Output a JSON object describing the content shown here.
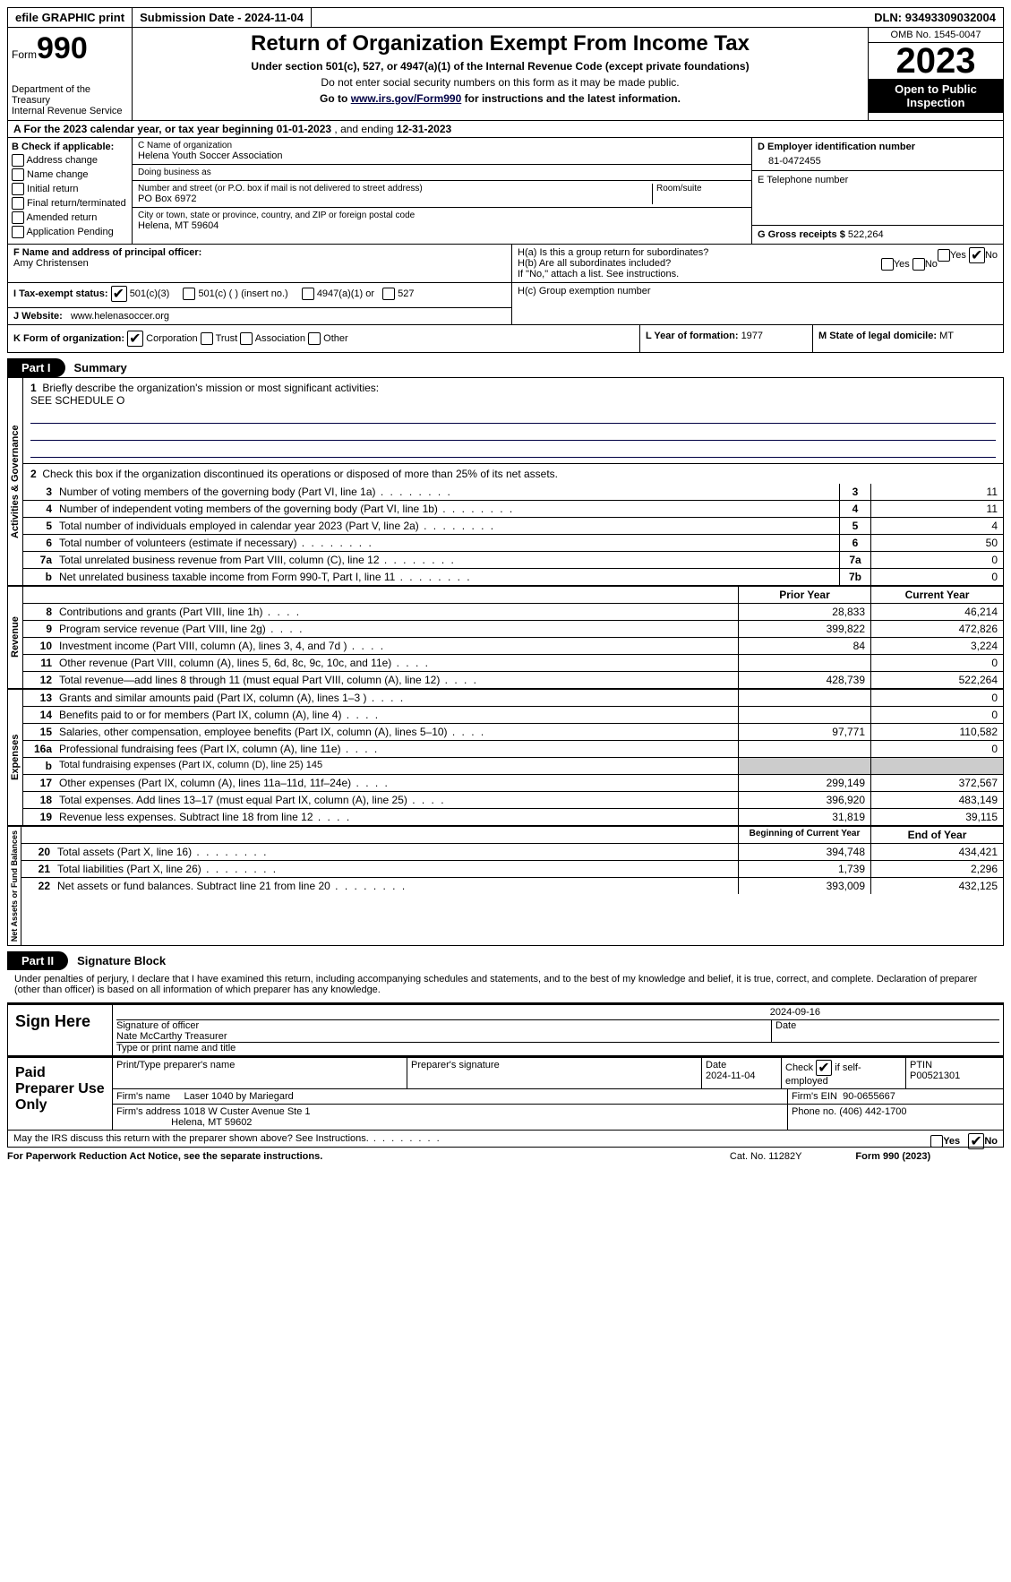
{
  "topbar": {
    "efile": "efile GRAPHIC print",
    "subdate_label": "Submission Date - ",
    "subdate": "2024-11-04",
    "dln_label": "DLN: ",
    "dln": "93493309032004"
  },
  "header": {
    "form_prefix": "Form",
    "form_num": "990",
    "dept": "Department of the Treasury",
    "irs": "Internal Revenue Service",
    "title": "Return of Organization Exempt From Income Tax",
    "sub1": "Under section 501(c), 527, or 4947(a)(1) of the Internal Revenue Code (except private foundations)",
    "sub2": "Do not enter social security numbers on this form as it may be made public.",
    "sub3_pre": "Go to ",
    "sub3_link": "www.irs.gov/Form990",
    "sub3_post": " for instructions and the latest information.",
    "omb": "OMB No. 1545-0047",
    "year": "2023",
    "inspect": "Open to Public Inspection"
  },
  "row_a": {
    "label_a": "A For the 2023 calendar year, or tax year beginning ",
    "begin": "01-01-2023",
    "mid": " , and ending ",
    "end": "12-31-2023"
  },
  "col_b": {
    "label": "B Check if applicable:",
    "items": [
      "Address change",
      "Name change",
      "Initial return",
      "Final return/terminated",
      "Amended return",
      "Application Pending"
    ]
  },
  "col_c": {
    "name_label": "C Name of organization",
    "name": "Helena Youth Soccer Association",
    "dba_label": "Doing business as",
    "addr_label": "Number and street (or P.O. box if mail is not delivered to street address)",
    "addr": "PO Box 6972",
    "room_label": "Room/suite",
    "city_label": "City or town, state or province, country, and ZIP or foreign postal code",
    "city": "Helena, MT  59604"
  },
  "col_d": {
    "label": "D Employer identification number",
    "val": "81-0472455"
  },
  "col_e": {
    "label": "E Telephone number"
  },
  "col_g": {
    "label": "G Gross receipts $ ",
    "val": "522,264"
  },
  "col_f": {
    "label": "F  Name and address of principal officer:",
    "name": "Amy Christensen"
  },
  "col_h": {
    "ha": "H(a)  Is this a group return for subordinates?",
    "hb": "H(b)  Are all subordinates included?",
    "hb_note": "If \"No,\" attach a list. See instructions.",
    "hc": "H(c)  Group exemption number",
    "yes": "Yes",
    "no": "No"
  },
  "tax_status": {
    "label_i": "I   Tax-exempt status:",
    "c3": "501(c)(3)",
    "c": "501(c) (  ) (insert no.)",
    "a1": "4947(a)(1) or",
    "s527": "527"
  },
  "website": {
    "label": "J   Website:",
    "val": "www.helenasoccer.org"
  },
  "row_k": {
    "label": "K Form of organization:",
    "corp": "Corporation",
    "trust": "Trust",
    "assoc": "Association",
    "other": "Other",
    "l_label": "L Year of formation: ",
    "l_val": "1977",
    "m_label": "M State of legal domicile: ",
    "m_val": "MT"
  },
  "part1": {
    "pill": "Part I",
    "title": "Summary"
  },
  "mission": {
    "num": "1",
    "label": "Briefly describe the organization's mission or most significant activities:",
    "text": "SEE SCHEDULE O"
  },
  "line2": {
    "num": "2",
    "text": "Check this box      if the organization discontinued its operations or disposed of more than 25% of its net assets."
  },
  "gov_lines": [
    {
      "num": "3",
      "desc": "Number of voting members of the governing body (Part VI, line 1a)",
      "box": "3",
      "val": "11"
    },
    {
      "num": "4",
      "desc": "Number of independent voting members of the governing body (Part VI, line 1b)",
      "box": "4",
      "val": "11"
    },
    {
      "num": "5",
      "desc": "Total number of individuals employed in calendar year 2023 (Part V, line 2a)",
      "box": "5",
      "val": "4"
    },
    {
      "num": "6",
      "desc": "Total number of volunteers (estimate if necessary)",
      "box": "6",
      "val": "50"
    },
    {
      "num": "7a",
      "desc": "Total unrelated business revenue from Part VIII, column (C), line 12",
      "box": "7a",
      "val": "0"
    },
    {
      "num": "b",
      "desc": "Net unrelated business taxable income from Form 990-T, Part I, line 11",
      "box": "7b",
      "val": "0"
    }
  ],
  "rev_hdr": {
    "prior": "Prior Year",
    "current": "Current Year"
  },
  "rev_lines": [
    {
      "num": "8",
      "desc": "Contributions and grants (Part VIII, line 1h)",
      "prior": "28,833",
      "cur": "46,214"
    },
    {
      "num": "9",
      "desc": "Program service revenue (Part VIII, line 2g)",
      "prior": "399,822",
      "cur": "472,826"
    },
    {
      "num": "10",
      "desc": "Investment income (Part VIII, column (A), lines 3, 4, and 7d )",
      "prior": "84",
      "cur": "3,224"
    },
    {
      "num": "11",
      "desc": "Other revenue (Part VIII, column (A), lines 5, 6d, 8c, 9c, 10c, and 11e)",
      "prior": "",
      "cur": "0"
    },
    {
      "num": "12",
      "desc": "Total revenue—add lines 8 through 11 (must equal Part VIII, column (A), line 12)",
      "prior": "428,739",
      "cur": "522,264"
    }
  ],
  "exp_lines": [
    {
      "num": "13",
      "desc": "Grants and similar amounts paid (Part IX, column (A), lines 1–3 )",
      "prior": "",
      "cur": "0"
    },
    {
      "num": "14",
      "desc": "Benefits paid to or for members (Part IX, column (A), line 4)",
      "prior": "",
      "cur": "0"
    },
    {
      "num": "15",
      "desc": "Salaries, other compensation, employee benefits (Part IX, column (A), lines 5–10)",
      "prior": "97,771",
      "cur": "110,582"
    },
    {
      "num": "16a",
      "desc": "Professional fundraising fees (Part IX, column (A), line 11e)",
      "prior": "",
      "cur": "0"
    },
    {
      "num": "b",
      "desc": "Total fundraising expenses (Part IX, column (D), line 25) 145",
      "grey": true
    },
    {
      "num": "17",
      "desc": "Other expenses (Part IX, column (A), lines 11a–11d, 11f–24e)",
      "prior": "299,149",
      "cur": "372,567"
    },
    {
      "num": "18",
      "desc": "Total expenses. Add lines 13–17 (must equal Part IX, column (A), line 25)",
      "prior": "396,920",
      "cur": "483,149"
    },
    {
      "num": "19",
      "desc": "Revenue less expenses. Subtract line 18 from line 12",
      "prior": "31,819",
      "cur": "39,115"
    }
  ],
  "net_hdr": {
    "begin": "Beginning of Current Year",
    "end": "End of Year"
  },
  "net_lines": [
    {
      "num": "20",
      "desc": "Total assets (Part X, line 16)",
      "prior": "394,748",
      "cur": "434,421"
    },
    {
      "num": "21",
      "desc": "Total liabilities (Part X, line 26)",
      "prior": "1,739",
      "cur": "2,296"
    },
    {
      "num": "22",
      "desc": "Net assets or fund balances. Subtract line 21 from line 20",
      "prior": "393,009",
      "cur": "432,125"
    }
  ],
  "side_labels": {
    "gov": "Activities & Governance",
    "rev": "Revenue",
    "exp": "Expenses",
    "net": "Net Assets or Fund Balances"
  },
  "part2": {
    "pill": "Part II",
    "title": "Signature Block"
  },
  "perjury": "Under penalties of perjury, I declare that I have examined this return, including accompanying schedules and statements, and to the best of my knowledge and belief, it is true, correct, and complete. Declaration of preparer (other than officer) is based on all information of which preparer has any knowledge.",
  "sign": {
    "here": "Sign Here",
    "sig_officer": "Signature of officer",
    "date": "Date",
    "sig_date": "2024-09-16",
    "officer": "Nate McCarthy Treasurer",
    "type_label": "Type or print name and title"
  },
  "paid": {
    "label": "Paid Preparer Use Only",
    "name_label": "Print/Type preparer's name",
    "sig_label": "Preparer's signature",
    "date_label": "Date",
    "date": "2024-11-04",
    "self_label": "Check         if self-employed",
    "ptin_label": "PTIN",
    "ptin": "P00521301",
    "firm_label": "Firm's name",
    "firm": "Laser 1040 by Mariegard",
    "ein_label": "Firm's EIN",
    "ein": "90-0655667",
    "addr_label": "Firm's address",
    "addr1": "1018 W Custer Avenue Ste 1",
    "addr2": "Helena, MT  59602",
    "phone_label": "Phone no.",
    "phone": "(406) 442-1700"
  },
  "may_irs": {
    "text": "May the IRS discuss this return with the preparer shown above? See Instructions.",
    "yes": "Yes",
    "no": "No"
  },
  "footer": {
    "left": "For Paperwork Reduction Act Notice, see the separate instructions.",
    "cat": "Cat. No. 11282Y",
    "right": "Form 990 (2023)"
  }
}
